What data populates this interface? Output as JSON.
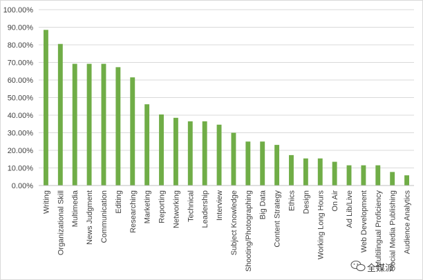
{
  "chart_data": {
    "type": "bar",
    "title": "",
    "xlabel": "",
    "ylabel": "",
    "ylim": [
      0,
      100
    ],
    "y_ticks": [
      "0.00%",
      "10.00%",
      "20.00%",
      "30.00%",
      "40.00%",
      "50.00%",
      "60.00%",
      "70.00%",
      "80.00%",
      "90.00%",
      "100.00%"
    ],
    "grid": true,
    "bar_color": "#70ad47",
    "categories": [
      "Writing",
      "Organizational Skill",
      "Multimedia",
      "News Judgment",
      "Communication",
      "Editing",
      "Researching",
      "Marketing",
      "Reporting",
      "Networking",
      "Technical",
      "Leadership",
      "Interview",
      "Subject Knowledge",
      "Shooting/Photographing",
      "Big Data",
      "Content Strategy",
      "Ethics",
      "Design",
      "Working Long Hours",
      "On Air",
      "Ad Lib/Live",
      "Web Development",
      "Multilingual Proficiency",
      "Social Media Publishing",
      "Audience Analytics"
    ],
    "values": [
      88.5,
      80.5,
      69.2,
      69.2,
      69.2,
      67.3,
      61.5,
      46.2,
      40.4,
      38.5,
      36.5,
      36.5,
      34.6,
      30.0,
      25.0,
      25.0,
      23.1,
      17.3,
      15.4,
      15.4,
      13.5,
      11.5,
      11.5,
      11.5,
      7.7,
      5.8
    ]
  },
  "watermark": {
    "text": "全媒派",
    "icon": "wechat-icon"
  }
}
